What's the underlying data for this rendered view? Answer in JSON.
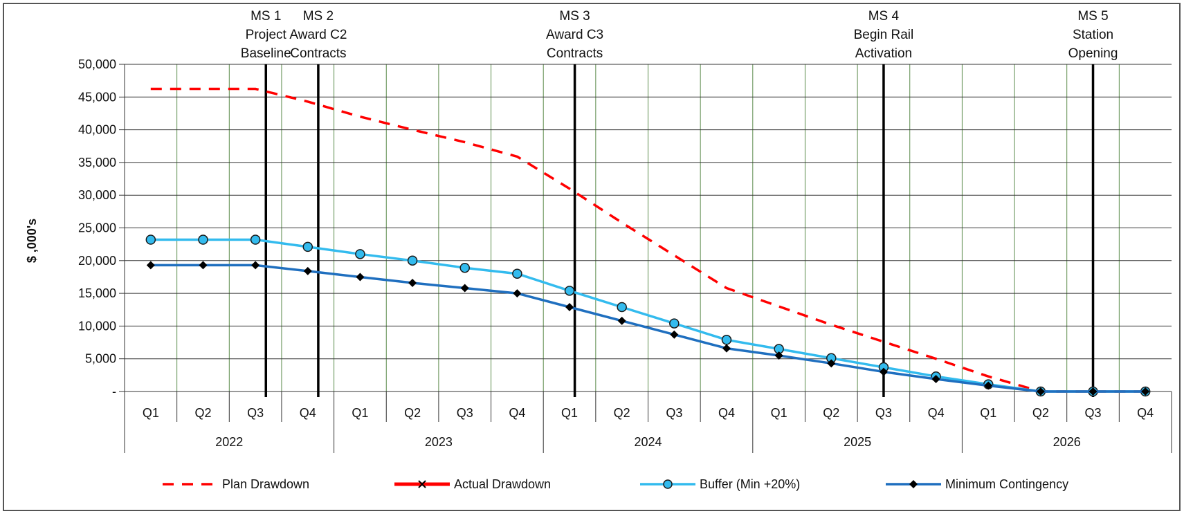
{
  "chart_data": {
    "type": "line",
    "ylabel": "$ ,000's",
    "ylim": [
      0,
      50000
    ],
    "y_ticks": [
      "-",
      "5,000",
      "10,000",
      "15,000",
      "20,000",
      "25,000",
      "30,000",
      "35,000",
      "40,000",
      "45,000",
      "50,000"
    ],
    "y_tick_values": [
      0,
      5000,
      10000,
      15000,
      20000,
      25000,
      30000,
      35000,
      40000,
      45000,
      50000
    ],
    "quarters": [
      "Q1",
      "Q2",
      "Q3",
      "Q4",
      "Q1",
      "Q2",
      "Q3",
      "Q4",
      "Q1",
      "Q2",
      "Q3",
      "Q4",
      "Q1",
      "Q2",
      "Q3",
      "Q4",
      "Q1",
      "Q2",
      "Q3",
      "Q4"
    ],
    "years": [
      "2022",
      "2023",
      "2024",
      "2025",
      "2026"
    ],
    "grid": true,
    "legend_position": "bottom",
    "milestones": [
      {
        "lines": [
          "MS 1",
          "Project",
          "Baseline"
        ],
        "x": 2.7
      },
      {
        "lines": [
          "MS 2",
          "Award C2",
          "Contracts"
        ],
        "x": 3.7
      },
      {
        "lines": [
          "MS 3",
          "Award C3",
          "Contracts"
        ],
        "x": 8.6
      },
      {
        "lines": [
          "MS 4",
          "Begin Rail",
          "Activation"
        ],
        "x": 14.5
      },
      {
        "lines": [
          "MS 5",
          "Station",
          "Opening"
        ],
        "x": 18.5
      }
    ],
    "series": [
      {
        "name": "Plan Drawdown",
        "color": "#ff0000",
        "style": "dashed",
        "marker": "none",
        "values": [
          46250,
          46250,
          46250,
          44300,
          42000,
          40000,
          38100,
          35900,
          31000,
          25800,
          20800,
          15800,
          13000,
          10200,
          7600,
          5000,
          2300,
          0,
          0,
          0
        ]
      },
      {
        "name": "Actual Drawdown",
        "color": "#ff0000",
        "style": "solid",
        "marker": "x",
        "values": []
      },
      {
        "name": "Buffer (Min +20%)",
        "color": "#33bbee",
        "style": "solid",
        "marker": "circle",
        "values": [
          23200,
          23200,
          23200,
          22100,
          21000,
          20000,
          18900,
          18000,
          15400,
          12900,
          10400,
          7900,
          6500,
          5100,
          3700,
          2300,
          1100,
          0,
          0,
          0
        ]
      },
      {
        "name": "Minimum Contingency",
        "color": "#1f6fbf",
        "style": "solid",
        "marker": "diamond",
        "values": [
          19300,
          19300,
          19300,
          18400,
          17500,
          16600,
          15800,
          15000,
          12900,
          10800,
          8700,
          6600,
          5500,
          4300,
          3000,
          1900,
          900,
          0,
          0,
          0
        ]
      }
    ]
  }
}
